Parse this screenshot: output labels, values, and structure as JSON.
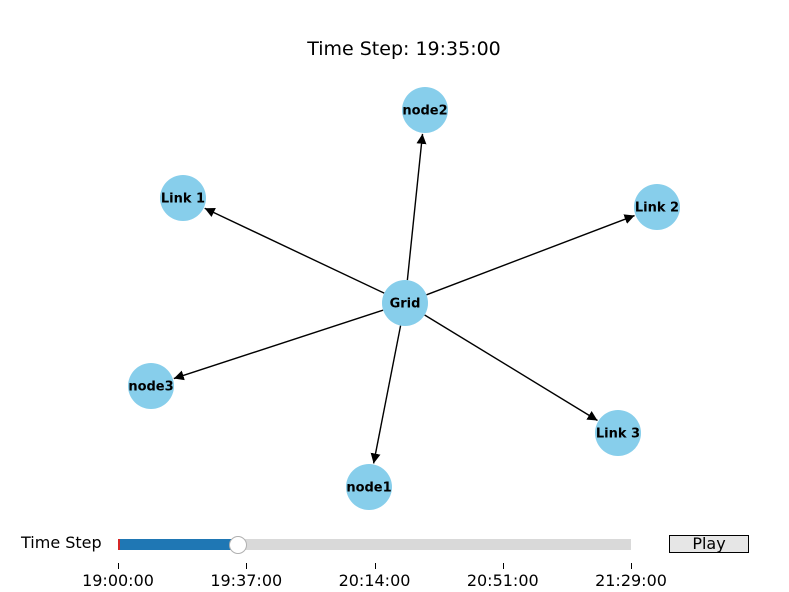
{
  "title": "Time Step: 19:35:00",
  "diagram": {
    "center": "Grid",
    "nodes": [
      {
        "id": "Grid"
      },
      {
        "id": "node2"
      },
      {
        "id": "Link 1"
      },
      {
        "id": "Link 2"
      },
      {
        "id": "node3"
      },
      {
        "id": "Link 3"
      },
      {
        "id": "node1"
      }
    ],
    "edges": [
      {
        "from": "Grid",
        "to": "node2"
      },
      {
        "from": "Grid",
        "to": "Link 1"
      },
      {
        "from": "Grid",
        "to": "Link 2"
      },
      {
        "from": "Grid",
        "to": "node3"
      },
      {
        "from": "Grid",
        "to": "Link 3"
      },
      {
        "from": "Grid",
        "to": "node1"
      }
    ],
    "node_color": "#87ceeb"
  },
  "controls": {
    "slider_label": "Time Step",
    "slider_value_fraction": 0.234,
    "slider_fill_color": "#1f77b4",
    "ticks": [
      "19:00:00",
      "19:37:00",
      "20:14:00",
      "20:51:00",
      "21:29:00"
    ],
    "play_label": "Play"
  }
}
